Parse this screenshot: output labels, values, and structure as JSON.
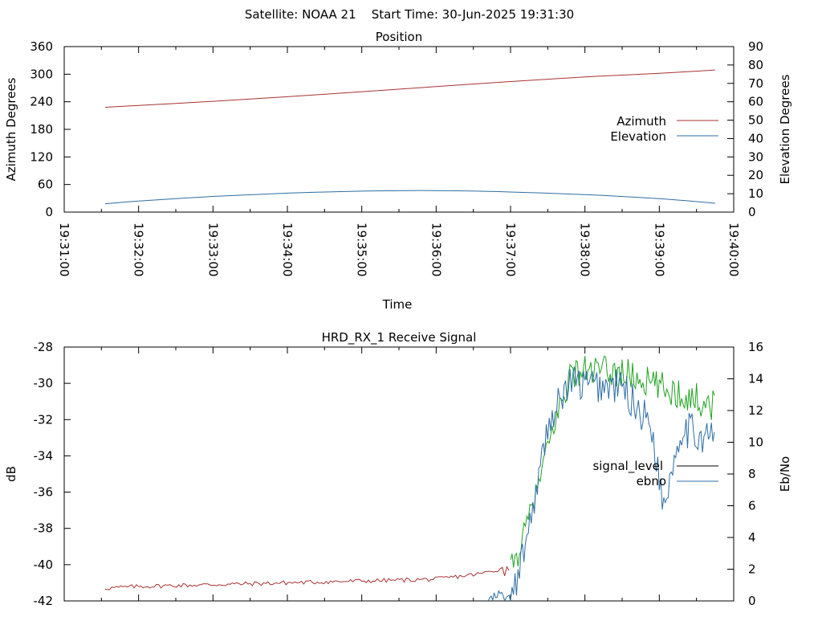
{
  "header": {
    "text": "Satellite: NOAA 21    Start Time: 30-Jun-2025 19:31:30"
  },
  "chart_data": [
    {
      "type": "line",
      "title": "Position",
      "xlabel": "Time",
      "ylabel": "Azimuth Degrees",
      "y2label": "Elevation Degrees",
      "ylim": [
        0,
        360
      ],
      "y2lim": [
        0,
        90
      ],
      "yticks": [
        "0",
        "60",
        "120",
        "180",
        "240",
        "300",
        "360"
      ],
      "y2ticks": [
        "0",
        "10",
        "20",
        "30",
        "40",
        "50",
        "60",
        "70",
        "80",
        "90"
      ],
      "x_tick_labels": [
        "19:31:00",
        "19:32:00",
        "19:33:00",
        "19:34:00",
        "19:35:00",
        "19:36:00",
        "19:37:00",
        "19:38:00",
        "19:39:00",
        "19:40:00"
      ],
      "legend_position": "right",
      "series": [
        {
          "name": "Azimuth",
          "axis": "y",
          "color": "#a83232",
          "x_minutes": [
            0.55,
            1.0,
            2.0,
            3.0,
            4.0,
            5.0,
            6.0,
            7.0,
            8.0,
            8.75
          ],
          "values": [
            228,
            232,
            241,
            251,
            262,
            273,
            284,
            294,
            302,
            309
          ]
        },
        {
          "name": "Elevation",
          "axis": "y2",
          "color": "#2e6da4",
          "x_minutes": [
            0.55,
            1.0,
            2.0,
            3.0,
            4.0,
            4.9,
            5.8,
            7.0,
            8.0,
            8.75
          ],
          "values": [
            4.5,
            6.0,
            8.5,
            10.3,
            11.4,
            11.7,
            11.2,
            9.5,
            7.3,
            4.8
          ]
        }
      ]
    },
    {
      "type": "line",
      "title": "HRD_RX_1 Receive Signal",
      "ylabel": "dB",
      "y2label": "Eb/No",
      "ylim": [
        -42,
        -28
      ],
      "y2lim": [
        0,
        16
      ],
      "yticks": [
        "-42",
        "-40",
        "-38",
        "-36",
        "-34",
        "-32",
        "-30",
        "-28"
      ],
      "y2ticks": [
        "0",
        "2",
        "4",
        "6",
        "8",
        "10",
        "12",
        "14",
        "16"
      ],
      "legend_position": "right",
      "series": [
        {
          "name": "signal_level",
          "axis": "y",
          "color": "#000000",
          "x_minutes": [
            0.55,
            1.0,
            2.0,
            3.0,
            4.0,
            5.0,
            5.6,
            6.0,
            6.1,
            6.2,
            6.35,
            6.5,
            6.8,
            7.0,
            7.5,
            8.0,
            8.75
          ],
          "values": [
            -41.3,
            -41.2,
            -41.1,
            -41.0,
            -40.9,
            -40.8,
            -40.5,
            -40.1,
            -39.5,
            -38.0,
            -36.0,
            -33.5,
            -29.5,
            -29.3,
            -29.4,
            -30.2,
            -31.2
          ]
        },
        {
          "name": "ebno",
          "axis": "y2",
          "color": "#2e6da4",
          "x_minutes": [
            5.7,
            5.85,
            6.0,
            6.1,
            6.2,
            6.35,
            6.5,
            6.8,
            7.0,
            7.5,
            7.9,
            8.05,
            8.15,
            8.3,
            8.5,
            8.75
          ],
          "values": [
            0,
            0.4,
            0,
            1.5,
            3.6,
            7.0,
            11.0,
            13.8,
            13.6,
            13.5,
            11.0,
            6.0,
            8.0,
            11.0,
            10.5,
            10.3
          ]
        }
      ]
    }
  ]
}
